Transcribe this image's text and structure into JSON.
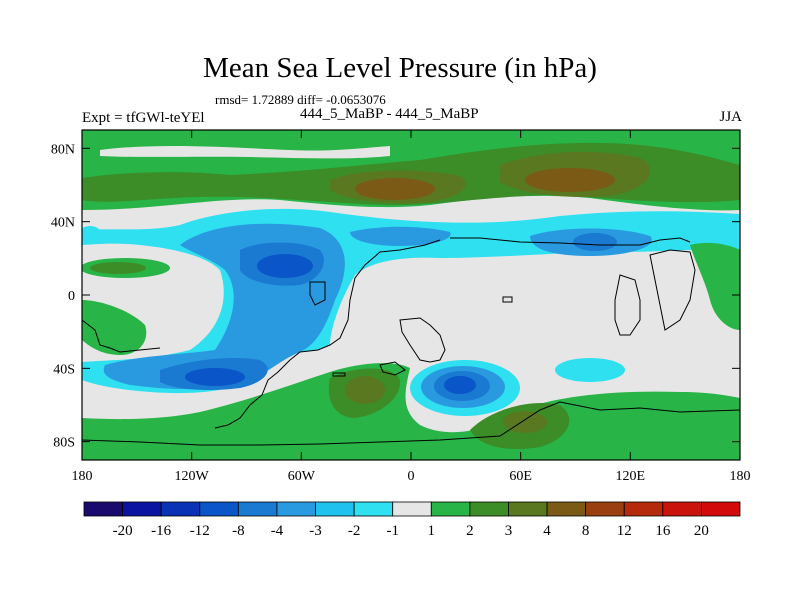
{
  "header": {
    "title": "Mean Sea Level Pressure (in hPa)",
    "stats": "rmsd= 1.72889 diff= -0.0653076",
    "left_label": "Expt = tfGWl-teYEl",
    "center_label": "444_5_MaBP - 444_5_MaBP",
    "right_label": "JJA"
  },
  "chart_data": {
    "type": "heatmap",
    "title": "Mean Sea Level Pressure (in hPa)",
    "subtitle": "444_5_MaBP - 444_5_MaBP",
    "xlabel": "",
    "ylabel": "",
    "xlim": [
      -180,
      180
    ],
    "ylim": [
      -90,
      90
    ],
    "x_ticks": [
      {
        "value": -180,
        "label": "180"
      },
      {
        "value": -120,
        "label": "120W"
      },
      {
        "value": -60,
        "label": "60W"
      },
      {
        "value": 0,
        "label": "0"
      },
      {
        "value": 60,
        "label": "60E"
      },
      {
        "value": 120,
        "label": "120E"
      },
      {
        "value": 180,
        "label": "180"
      }
    ],
    "y_ticks": [
      {
        "value": 80,
        "label": "80N"
      },
      {
        "value": 40,
        "label": "40N"
      },
      {
        "value": 0,
        "label": "0"
      },
      {
        "value": -40,
        "label": "40S"
      },
      {
        "value": -80,
        "label": "80S"
      }
    ],
    "colorbar": {
      "levels": [
        "-20",
        "-16",
        "-12",
        "-8",
        "-4",
        "-3",
        "-2",
        "-1",
        "1",
        "2",
        "3",
        "4",
        "8",
        "12",
        "16",
        "20"
      ],
      "colors": [
        "#1a0a6e",
        "#0a14a0",
        "#0a32b4",
        "#0a55c8",
        "#1a7ad2",
        "#2a9ae0",
        "#1ec2ec",
        "#2ee0f0",
        "#e6e6e6",
        "#28b446",
        "#3c8c28",
        "#5a7820",
        "#7a5a14",
        "#9a4010",
        "#b42a0a",
        "#c8140a",
        "#d20a0a"
      ]
    },
    "features": [
      {
        "name": "arctic-positive-band",
        "lon_range": [
          -180,
          180
        ],
        "lat_range": [
          52,
          86
        ],
        "value": 2
      },
      {
        "name": "north-atlantic-high",
        "lon": -20,
        "lat": 60,
        "value": 8
      },
      {
        "name": "north-pacific-high",
        "lon": 70,
        "lat": 62,
        "value": 8
      },
      {
        "name": "north-pacific-west-high",
        "lon": -150,
        "lat": 16,
        "value": 3
      },
      {
        "name": "north-atlantic-low",
        "lon": -60,
        "lat": 16,
        "value": -8
      },
      {
        "name": "subtropical-low-band",
        "lon_range": [
          -180,
          180
        ],
        "lat_range": [
          20,
          42
        ],
        "value": -3
      },
      {
        "name": "asia-low",
        "lon": 100,
        "lat": 30,
        "value": -4
      },
      {
        "name": "south-pacific-low",
        "lon": -120,
        "lat": -45,
        "value": -8
      },
      {
        "name": "indian-ocean-low",
        "lon": 25,
        "lat": -50,
        "value": -8
      },
      {
        "name": "south-atlantic-high",
        "lon": -20,
        "lat": -52,
        "value": 4
      },
      {
        "name": "antarctic-indian-high",
        "lon": 60,
        "lat": -68,
        "value": 4
      },
      {
        "name": "southern-ocean-positive-band",
        "lon_range": [
          -180,
          180
        ],
        "lat_range": [
          -90,
          -58
        ],
        "value": 2
      }
    ]
  }
}
